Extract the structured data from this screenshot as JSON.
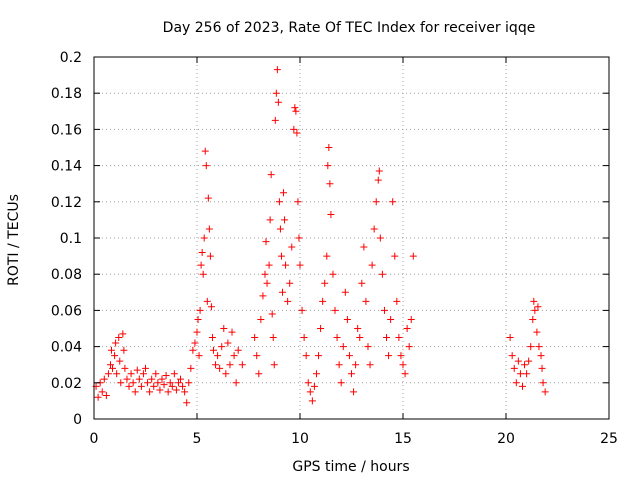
{
  "chart_data": {
    "type": "scatter",
    "title": "Day 256 of 2023, Rate Of TEC Index for receiver iqqe",
    "xlabel": "GPS time / hours",
    "ylabel": "ROTI / TECUs",
    "xlim": [
      0,
      25
    ],
    "ylim": [
      0,
      0.2
    ],
    "xticks": [
      "0",
      "5",
      "10",
      "15",
      "20",
      "25"
    ],
    "yticks": [
      "0",
      "0.02",
      "0.04",
      "0.06",
      "0.08",
      "0.1",
      "0.12",
      "0.14",
      "0.16",
      "0.18",
      "0.2"
    ],
    "grid": true,
    "marker": "+",
    "color": "#ff0000",
    "series": [
      {
        "points": [
          [
            0.1,
            0.018
          ],
          [
            0.2,
            0.012
          ],
          [
            0.3,
            0.02
          ],
          [
            0.4,
            0.015
          ],
          [
            0.5,
            0.022
          ],
          [
            0.6,
            0.013
          ],
          [
            0.7,
            0.025
          ],
          [
            0.8,
            0.03
          ],
          [
            0.85,
            0.038
          ],
          [
            0.9,
            0.028
          ],
          [
            1.0,
            0.035
          ],
          [
            1.05,
            0.042
          ],
          [
            1.1,
            0.025
          ],
          [
            1.2,
            0.045
          ],
          [
            1.25,
            0.032
          ],
          [
            1.3,
            0.02
          ],
          [
            1.4,
            0.047
          ],
          [
            1.45,
            0.038
          ],
          [
            1.5,
            0.028
          ],
          [
            1.6,
            0.022
          ],
          [
            1.7,
            0.018
          ],
          [
            1.8,
            0.025
          ],
          [
            1.9,
            0.02
          ],
          [
            2.0,
            0.015
          ],
          [
            2.1,
            0.027
          ],
          [
            2.2,
            0.022
          ],
          [
            2.3,
            0.018
          ],
          [
            2.4,
            0.025
          ],
          [
            2.5,
            0.028
          ],
          [
            2.6,
            0.02
          ],
          [
            2.7,
            0.015
          ],
          [
            2.8,
            0.022
          ],
          [
            2.9,
            0.018
          ],
          [
            3.0,
            0.025
          ],
          [
            3.1,
            0.02
          ],
          [
            3.2,
            0.016
          ],
          [
            3.3,
            0.022
          ],
          [
            3.4,
            0.019
          ],
          [
            3.5,
            0.024
          ],
          [
            3.6,
            0.015
          ],
          [
            3.7,
            0.02
          ],
          [
            3.8,
            0.018
          ],
          [
            3.9,
            0.025
          ],
          [
            4.0,
            0.016
          ],
          [
            4.1,
            0.02
          ],
          [
            4.2,
            0.022
          ],
          [
            4.3,
            0.018
          ],
          [
            4.4,
            0.015
          ],
          [
            4.5,
            0.009
          ],
          [
            4.6,
            0.02
          ],
          [
            4.7,
            0.028
          ],
          [
            4.8,
            0.038
          ],
          [
            4.9,
            0.042
          ],
          [
            5.0,
            0.048
          ],
          [
            5.05,
            0.055
          ],
          [
            5.1,
            0.035
          ],
          [
            5.15,
            0.06
          ],
          [
            5.2,
            0.085
          ],
          [
            5.25,
            0.092
          ],
          [
            5.3,
            0.08
          ],
          [
            5.35,
            0.1
          ],
          [
            5.4,
            0.148
          ],
          [
            5.45,
            0.14
          ],
          [
            5.5,
            0.065
          ],
          [
            5.55,
            0.122
          ],
          [
            5.6,
            0.105
          ],
          [
            5.65,
            0.09
          ],
          [
            5.7,
            0.062
          ],
          [
            5.75,
            0.045
          ],
          [
            5.8,
            0.038
          ],
          [
            5.9,
            0.03
          ],
          [
            6.0,
            0.035
          ],
          [
            6.1,
            0.028
          ],
          [
            6.2,
            0.04
          ],
          [
            6.3,
            0.05
          ],
          [
            6.4,
            0.025
          ],
          [
            6.5,
            0.042
          ],
          [
            6.6,
            0.03
          ],
          [
            6.7,
            0.048
          ],
          [
            6.8,
            0.035
          ],
          [
            6.9,
            0.02
          ],
          [
            7.0,
            0.038
          ],
          [
            7.2,
            0.03
          ],
          [
            7.8,
            0.045
          ],
          [
            7.9,
            0.035
          ],
          [
            8.0,
            0.025
          ],
          [
            8.1,
            0.055
          ],
          [
            8.2,
            0.068
          ],
          [
            8.3,
            0.08
          ],
          [
            8.35,
            0.098
          ],
          [
            8.4,
            0.075
          ],
          [
            8.5,
            0.085
          ],
          [
            8.55,
            0.11
          ],
          [
            8.6,
            0.135
          ],
          [
            8.65,
            0.058
          ],
          [
            8.7,
            0.045
          ],
          [
            8.75,
            0.03
          ],
          [
            8.8,
            0.165
          ],
          [
            8.85,
            0.18
          ],
          [
            8.9,
            0.193
          ],
          [
            8.95,
            0.175
          ],
          [
            9.0,
            0.12
          ],
          [
            9.05,
            0.105
          ],
          [
            9.1,
            0.09
          ],
          [
            9.15,
            0.07
          ],
          [
            9.2,
            0.125
          ],
          [
            9.25,
            0.11
          ],
          [
            9.3,
            0.085
          ],
          [
            9.4,
            0.065
          ],
          [
            9.5,
            0.075
          ],
          [
            9.6,
            0.095
          ],
          [
            9.7,
            0.16
          ],
          [
            9.75,
            0.172
          ],
          [
            9.8,
            0.17
          ],
          [
            9.85,
            0.158
          ],
          [
            9.9,
            0.12
          ],
          [
            9.95,
            0.1
          ],
          [
            10.0,
            0.085
          ],
          [
            10.1,
            0.06
          ],
          [
            10.2,
            0.045
          ],
          [
            10.3,
            0.035
          ],
          [
            10.4,
            0.02
          ],
          [
            10.5,
            0.015
          ],
          [
            10.6,
            0.01
          ],
          [
            10.7,
            0.018
          ],
          [
            10.8,
            0.025
          ],
          [
            10.9,
            0.035
          ],
          [
            11.0,
            0.05
          ],
          [
            11.1,
            0.065
          ],
          [
            11.2,
            0.075
          ],
          [
            11.3,
            0.09
          ],
          [
            11.35,
            0.14
          ],
          [
            11.4,
            0.15
          ],
          [
            11.45,
            0.13
          ],
          [
            11.5,
            0.113
          ],
          [
            11.6,
            0.08
          ],
          [
            11.7,
            0.06
          ],
          [
            11.8,
            0.045
          ],
          [
            11.9,
            0.03
          ],
          [
            12.0,
            0.02
          ],
          [
            12.1,
            0.04
          ],
          [
            12.2,
            0.07
          ],
          [
            12.3,
            0.055
          ],
          [
            12.4,
            0.035
          ],
          [
            12.5,
            0.025
          ],
          [
            12.6,
            0.015
          ],
          [
            12.7,
            0.03
          ],
          [
            12.8,
            0.05
          ],
          [
            12.9,
            0.045
          ],
          [
            13.0,
            0.075
          ],
          [
            13.1,
            0.095
          ],
          [
            13.2,
            0.065
          ],
          [
            13.3,
            0.04
          ],
          [
            13.4,
            0.03
          ],
          [
            13.5,
            0.085
          ],
          [
            13.6,
            0.105
          ],
          [
            13.7,
            0.12
          ],
          [
            13.8,
            0.132
          ],
          [
            13.85,
            0.137
          ],
          [
            13.9,
            0.1
          ],
          [
            14.0,
            0.08
          ],
          [
            14.1,
            0.06
          ],
          [
            14.2,
            0.045
          ],
          [
            14.3,
            0.035
          ],
          [
            14.4,
            0.055
          ],
          [
            14.5,
            0.12
          ],
          [
            14.6,
            0.09
          ],
          [
            14.7,
            0.065
          ],
          [
            14.8,
            0.045
          ],
          [
            14.9,
            0.035
          ],
          [
            15.0,
            0.03
          ],
          [
            15.1,
            0.025
          ],
          [
            15.2,
            0.05
          ],
          [
            15.3,
            0.04
          ],
          [
            15.4,
            0.055
          ],
          [
            15.5,
            0.09
          ],
          [
            20.2,
            0.045
          ],
          [
            20.3,
            0.035
          ],
          [
            20.4,
            0.028
          ],
          [
            20.5,
            0.02
          ],
          [
            20.6,
            0.032
          ],
          [
            20.7,
            0.025
          ],
          [
            20.8,
            0.018
          ],
          [
            20.9,
            0.03
          ],
          [
            21.0,
            0.025
          ],
          [
            21.1,
            0.032
          ],
          [
            21.2,
            0.04
          ],
          [
            21.3,
            0.055
          ],
          [
            21.35,
            0.065
          ],
          [
            21.4,
            0.06
          ],
          [
            21.5,
            0.048
          ],
          [
            21.55,
            0.062
          ],
          [
            21.6,
            0.04
          ],
          [
            21.7,
            0.035
          ],
          [
            21.75,
            0.028
          ],
          [
            21.8,
            0.02
          ],
          [
            21.9,
            0.015
          ]
        ]
      }
    ]
  }
}
